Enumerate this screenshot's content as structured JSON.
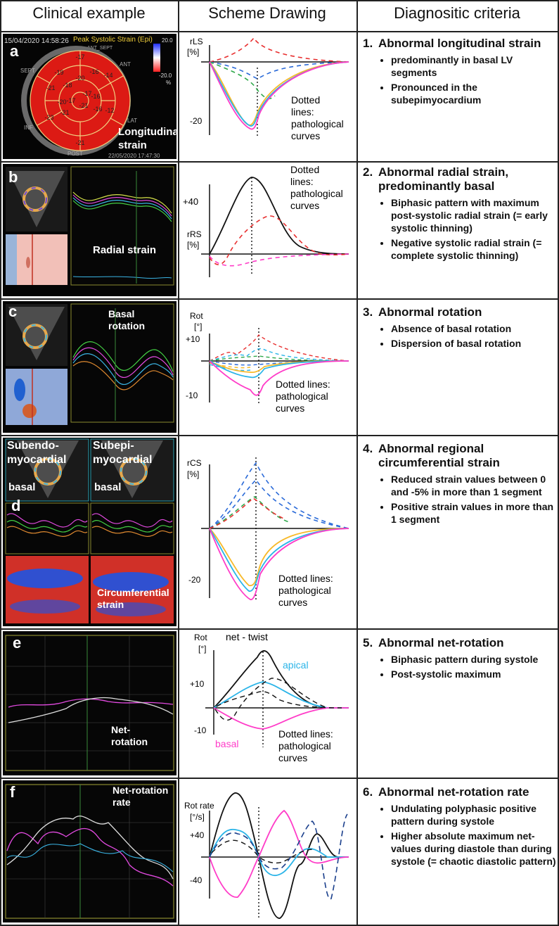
{
  "headers": {
    "col1": "Clinical example",
    "col2": "Scheme Drawing",
    "col3": "Diagnositic criteria"
  },
  "rows": [
    {
      "letter": "a",
      "panel_texts": {
        "date": "15/04/2020 14:58:26",
        "title": "Peak Systolic Strain (Epi)",
        "label": "Longitudinal strain",
        "footer": "22/05/2020 17:47:30",
        "scale_top": "20.0",
        "scale_bot": "-20.0",
        "scale_unit": "%",
        "ant": "ANT",
        "inf": "INF",
        "sept": "SEPT",
        "ant_sept": "ANT_SEPT",
        "lat": "LAT",
        "post": "POST"
      },
      "segment_values": [
        "-17",
        "-19",
        "-14",
        "-16",
        "-18",
        "-21",
        "-12",
        "-23",
        "-21",
        "-20",
        "-16",
        "-17",
        "-17",
        "-21",
        "-21",
        "-20",
        "-16"
      ],
      "scheme": {
        "ylabel": "rLS",
        "yunit": "[%]",
        "ytick": "-20",
        "note": [
          "Dotted",
          "lines:",
          "pathological",
          "curves"
        ]
      },
      "criteria": {
        "num": "1.",
        "title": "Abnormal longitudinal strain",
        "items": [
          "predominantly in basal LV segments",
          "Pronounced in the subepimyocardium"
        ]
      }
    },
    {
      "letter": "b",
      "panel_texts": {
        "label": "Radial strain"
      },
      "scheme": {
        "ylabel": "rRS",
        "yunit": "[%]",
        "ytick": "+40",
        "note": [
          "Dotted",
          "lines:",
          "pathological",
          "curves"
        ]
      },
      "criteria": {
        "num": "2.",
        "title": "Abnormal radial strain, predominantly basal",
        "items": [
          "Biphasic pattern with maximum post-systolic radial strain (= early systolic thinning)",
          "Negative systolic radial strain (= complete systolic thinning)"
        ]
      }
    },
    {
      "letter": "c",
      "panel_texts": {
        "label": "Basal rotation"
      },
      "scheme": {
        "ylabel": "Rot",
        "yunit": "[°]",
        "ytick_top": "+10",
        "ytick_bot": "-10",
        "note": [
          "Dotted lines:",
          "pathological",
          "curves"
        ]
      },
      "criteria": {
        "num": "3.",
        "title": "Abnormal rotation",
        "items": [
          "Absence of basal rotation",
          "Dispersion of basal rotation"
        ]
      }
    },
    {
      "letter": "d",
      "panel_texts": {
        "left_title": "Subendo-myocardial",
        "right_title": "Subepi-myocardial",
        "left_basal": "basal",
        "right_basal": "basal",
        "label": "Circumferential strain"
      },
      "scheme": {
        "ylabel": "rCS",
        "yunit": "[%]",
        "ytick": "-20",
        "note": [
          "Dotted lines:",
          "pathological",
          "curves"
        ]
      },
      "criteria": {
        "num": "4.",
        "title": "Abnormal regional circumferential strain",
        "items": [
          "Reduced strain values between 0 and -5% in more than 1 segment",
          "Positive strain values in more than 1 segment"
        ]
      }
    },
    {
      "letter": "e",
      "panel_texts": {
        "label": "Net-rotation"
      },
      "scheme": {
        "ylabel": "Rot",
        "yunit": "[°]",
        "ytick_top": "+10",
        "ytick_bot": "-10",
        "net": "net - twist",
        "apical": "apical",
        "basal": "basal",
        "note": [
          "Dotted lines:",
          "pathological",
          "curves"
        ]
      },
      "criteria": {
        "num": "5.",
        "title": "Abnormal net-rotation",
        "items": [
          "Biphasic pattern during systole",
          "Post-systolic maximum"
        ]
      }
    },
    {
      "letter": "f",
      "panel_texts": {
        "label": "Net-rotation rate"
      },
      "scheme": {
        "ylabel": "Rot rate",
        "yunit": "[°/s]",
        "ytick_top": "+40",
        "ytick_bot": "-40"
      },
      "criteria": {
        "num": "6.",
        "title": "Abnormal net-rotation rate",
        "items": [
          "Undulating polyphasic positive pattern during systole",
          "Higher absolute maximum net-values during diastole than during systole (= chaotic diastolic pattern)"
        ]
      }
    }
  ],
  "colors": {
    "black": "#111111",
    "magenta": "#ff3cc8",
    "cyan": "#2ab4e8",
    "yellow": "#f7b928",
    "red": "#e83030",
    "green": "#2ea84a",
    "blue": "#2a6ad8",
    "navy": "#1a3f8c"
  }
}
